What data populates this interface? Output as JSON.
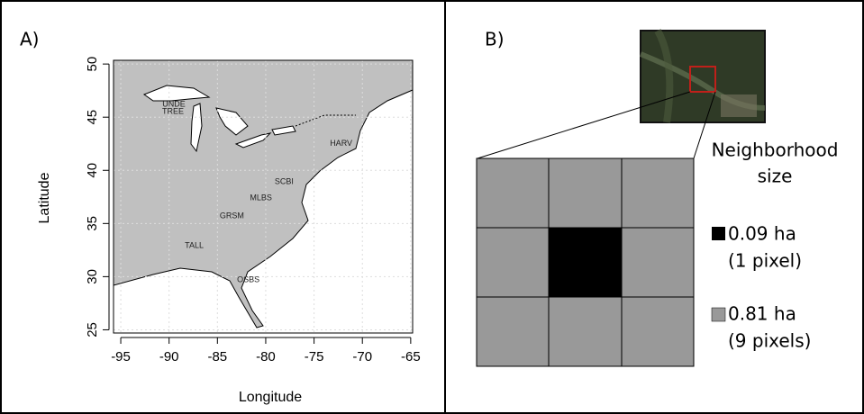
{
  "panel_a": {
    "label": "A)",
    "x_label": "Longitude",
    "y_label": "Latitude",
    "xlim": [
      -95.75,
      -64.8
    ],
    "ylim": [
      24.7,
      50.35
    ],
    "xticks": [
      -95,
      -90,
      -85,
      -80,
      -75,
      -70,
      -65
    ],
    "yticks": [
      25,
      30,
      35,
      40,
      45,
      50
    ],
    "sites": [
      {
        "name": "UNDE",
        "lon": -89.5,
        "lat": 46.2
      },
      {
        "name": "TREE",
        "lon": -89.6,
        "lat": 45.5
      },
      {
        "name": "HARV",
        "lon": -72.2,
        "lat": 42.5
      },
      {
        "name": "SCBI",
        "lon": -78.1,
        "lat": 38.9
      },
      {
        "name": "MLBS",
        "lon": -80.5,
        "lat": 37.4
      },
      {
        "name": "GRSM",
        "lon": -83.5,
        "lat": 35.7
      },
      {
        "name": "TALL",
        "lon": -87.4,
        "lat": 32.9
      },
      {
        "name": "OSBS",
        "lon": -81.8,
        "lat": 29.7
      }
    ]
  },
  "panel_b": {
    "label": "B)",
    "legend_title": [
      "Neighborhood",
      "size"
    ],
    "legend": [
      {
        "area": "0.09 ha",
        "pixels": "(1 pixel)"
      },
      {
        "area": "0.81 ha",
        "pixels": "(9 pixels)"
      }
    ]
  }
}
